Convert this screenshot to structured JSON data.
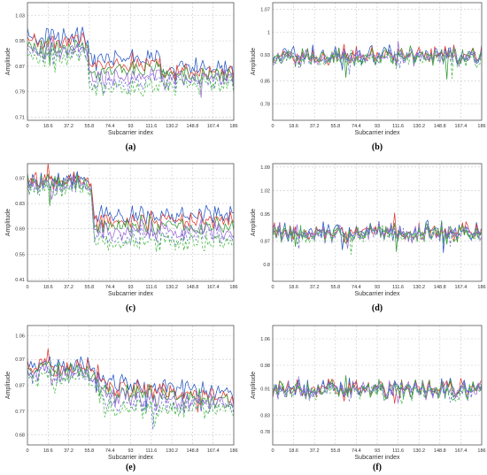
{
  "colors": {
    "series_1": "#2456c4",
    "series_2": "#e23a2f",
    "series_3": "#2f9a2f",
    "series_4": "#9b6cd6",
    "dashed_1": "#6b6bd0",
    "dashed_2": "#3fb83f",
    "grid": "#c9c9c9",
    "axes_border": "#555555"
  },
  "chart_data": [
    {
      "panel": "a",
      "caption": "(a)",
      "type": "line",
      "xlabel": "Subcarrier index",
      "ylabel": "Amplitude",
      "xlim": [
        0,
        186
      ],
      "ylim": [
        0.7,
        1.07
      ],
      "x_ticks": [
        "0",
        "18.6",
        "37.2",
        "55.8",
        "74.4",
        "93",
        "111.6",
        "130.2",
        "148.8",
        "167.4",
        "186"
      ],
      "y_ticks": [
        "0.71",
        "0.79",
        "0.87",
        "0.95",
        "1.03"
      ],
      "grid": true,
      "n_series": 6,
      "series_levels": [
        {
          "x": [
            0,
            55,
            56,
            120,
            121,
            186
          ],
          "y": [
            0.96,
            0.96,
            0.9,
            0.9,
            0.86,
            0.86
          ]
        },
        {
          "x": [
            0,
            55,
            56,
            120,
            121,
            186
          ],
          "y": [
            0.95,
            0.95,
            0.88,
            0.88,
            0.85,
            0.85
          ]
        },
        {
          "x": [
            0,
            55,
            56,
            120,
            121,
            186
          ],
          "y": [
            0.93,
            0.93,
            0.86,
            0.86,
            0.84,
            0.84
          ]
        },
        {
          "x": [
            0,
            55,
            56,
            120,
            121,
            186
          ],
          "y": [
            0.92,
            0.92,
            0.84,
            0.84,
            0.83,
            0.83
          ]
        },
        {
          "x": [
            0,
            55,
            56,
            120,
            121,
            186
          ],
          "y": [
            0.91,
            0.91,
            0.82,
            0.82,
            0.82,
            0.82
          ]
        },
        {
          "x": [
            0,
            55,
            56,
            120,
            121,
            186
          ],
          "y": [
            0.9,
            0.9,
            0.8,
            0.8,
            0.81,
            0.81
          ]
        }
      ]
    },
    {
      "panel": "b",
      "caption": "(b)",
      "type": "line",
      "xlabel": "Subcarrier index",
      "ylabel": "Amplitude",
      "xlim": [
        0,
        186
      ],
      "ylim": [
        0.73,
        1.09
      ],
      "x_ticks": [
        "0",
        "18.6",
        "37.2",
        "55.8",
        "74.4",
        "93",
        "111.6",
        "130.2",
        "148.8",
        "167.4",
        "186"
      ],
      "y_ticks": [
        "0.78",
        "0.85",
        "0.93",
        "1",
        "1.07"
      ],
      "grid": true,
      "n_series": 6,
      "series_levels": [
        {
          "x": [
            0,
            186
          ],
          "y": [
            0.93,
            0.93
          ]
        },
        {
          "x": [
            0,
            186
          ],
          "y": [
            0.928,
            0.928
          ]
        },
        {
          "x": [
            0,
            186
          ],
          "y": [
            0.926,
            0.926
          ]
        },
        {
          "x": [
            0,
            186
          ],
          "y": [
            0.924,
            0.924
          ]
        },
        {
          "x": [
            0,
            186
          ],
          "y": [
            0.922,
            0.922
          ]
        },
        {
          "x": [
            0,
            186
          ],
          "y": [
            0.92,
            0.92
          ]
        }
      ]
    },
    {
      "panel": "c",
      "caption": "(c)",
      "type": "line",
      "xlabel": "Subcarrier index",
      "ylabel": "Amplitude",
      "xlim": [
        0,
        186
      ],
      "ylim": [
        0.4,
        1.05
      ],
      "x_ticks": [
        "0",
        "18.6",
        "37.2",
        "55.8",
        "74.4",
        "93",
        "111.6",
        "130.2",
        "148.8",
        "167.4",
        "186"
      ],
      "y_ticks": [
        "0.41",
        "0.55",
        "0.69",
        "0.83",
        "0.97"
      ],
      "grid": true,
      "n_series": 6,
      "series_levels": [
        {
          "x": [
            0,
            58,
            60,
            186
          ],
          "y": [
            0.97,
            0.97,
            0.77,
            0.77
          ]
        },
        {
          "x": [
            0,
            58,
            60,
            186
          ],
          "y": [
            0.96,
            0.96,
            0.74,
            0.74
          ]
        },
        {
          "x": [
            0,
            58,
            60,
            186
          ],
          "y": [
            0.95,
            0.95,
            0.71,
            0.71
          ]
        },
        {
          "x": [
            0,
            58,
            60,
            186
          ],
          "y": [
            0.94,
            0.94,
            0.68,
            0.68
          ]
        },
        {
          "x": [
            0,
            58,
            60,
            186
          ],
          "y": [
            0.93,
            0.93,
            0.65,
            0.65
          ]
        },
        {
          "x": [
            0,
            58,
            60,
            186
          ],
          "y": [
            0.92,
            0.92,
            0.62,
            0.62
          ]
        }
      ]
    },
    {
      "panel": "d",
      "caption": "(d)",
      "type": "line",
      "xlabel": "Subcarrier index",
      "ylabel": "Amplitude",
      "xlim": [
        0,
        186
      ],
      "ylim": [
        0.75,
        1.1
      ],
      "x_ticks": [
        "0",
        "18.6",
        "37.2",
        "55.8",
        "74.4",
        "93",
        "111.6",
        "130.2",
        "148.8",
        "167.4",
        "186"
      ],
      "y_ticks": [
        "0.8",
        "0.87",
        "0.95",
        "1.02",
        "1.09"
      ],
      "grid": true,
      "n_series": 6,
      "series_levels": [
        {
          "x": [
            0,
            186
          ],
          "y": [
            0.9,
            0.9
          ]
        },
        {
          "x": [
            0,
            186
          ],
          "y": [
            0.898,
            0.898
          ]
        },
        {
          "x": [
            0,
            186
          ],
          "y": [
            0.896,
            0.896
          ]
        },
        {
          "x": [
            0,
            186
          ],
          "y": [
            0.894,
            0.894
          ]
        },
        {
          "x": [
            0,
            186
          ],
          "y": [
            0.892,
            0.892
          ]
        },
        {
          "x": [
            0,
            186
          ],
          "y": [
            0.89,
            0.89
          ]
        }
      ]
    },
    {
      "panel": "e",
      "caption": "(e)",
      "type": "line",
      "xlabel": "Subcarrier index",
      "ylabel": "Amplitude",
      "xlim": [
        0,
        186
      ],
      "ylim": [
        0.64,
        1.1
      ],
      "x_ticks": [
        "0",
        "18.6",
        "37.2",
        "55.8",
        "74.4",
        "93",
        "111.6",
        "130.2",
        "148.8",
        "167.4",
        "186"
      ],
      "y_ticks": [
        "0.68",
        "0.77",
        "0.87",
        "0.97",
        "1.06"
      ],
      "grid": true,
      "n_series": 6,
      "series_levels": [
        {
          "x": [
            0,
            55,
            75,
            186
          ],
          "y": [
            0.95,
            0.95,
            0.88,
            0.84
          ]
        },
        {
          "x": [
            0,
            55,
            75,
            186
          ],
          "y": [
            0.94,
            0.94,
            0.86,
            0.82
          ]
        },
        {
          "x": [
            0,
            55,
            75,
            186
          ],
          "y": [
            0.93,
            0.93,
            0.84,
            0.81
          ]
        },
        {
          "x": [
            0,
            55,
            75,
            186
          ],
          "y": [
            0.92,
            0.92,
            0.82,
            0.8
          ]
        },
        {
          "x": [
            0,
            55,
            75,
            186
          ],
          "y": [
            0.91,
            0.91,
            0.8,
            0.79
          ]
        },
        {
          "x": [
            0,
            55,
            75,
            186
          ],
          "y": [
            0.9,
            0.9,
            0.78,
            0.78
          ]
        }
      ]
    },
    {
      "panel": "f",
      "caption": "(f)",
      "type": "line",
      "xlabel": "Subcarrier index",
      "ylabel": "Amplitude",
      "xlim": [
        0,
        186
      ],
      "ylim": [
        0.74,
        1.1
      ],
      "x_ticks": [
        "0",
        "18.6",
        "37.2",
        "55.8",
        "74.4",
        "93",
        "111.6",
        "130.2",
        "148.8",
        "167.4",
        "186"
      ],
      "y_ticks": [
        "0.78",
        "0.83",
        "0.91",
        "0.98",
        "1.06"
      ],
      "grid": true,
      "n_series": 6,
      "series_levels": [
        {
          "x": [
            0,
            186
          ],
          "y": [
            0.91,
            0.91
          ]
        },
        {
          "x": [
            0,
            186
          ],
          "y": [
            0.908,
            0.908
          ]
        },
        {
          "x": [
            0,
            186
          ],
          "y": [
            0.906,
            0.906
          ]
        },
        {
          "x": [
            0,
            186
          ],
          "y": [
            0.904,
            0.904
          ]
        },
        {
          "x": [
            0,
            186
          ],
          "y": [
            0.902,
            0.902
          ]
        },
        {
          "x": [
            0,
            186
          ],
          "y": [
            0.9,
            0.9
          ]
        }
      ]
    }
  ]
}
